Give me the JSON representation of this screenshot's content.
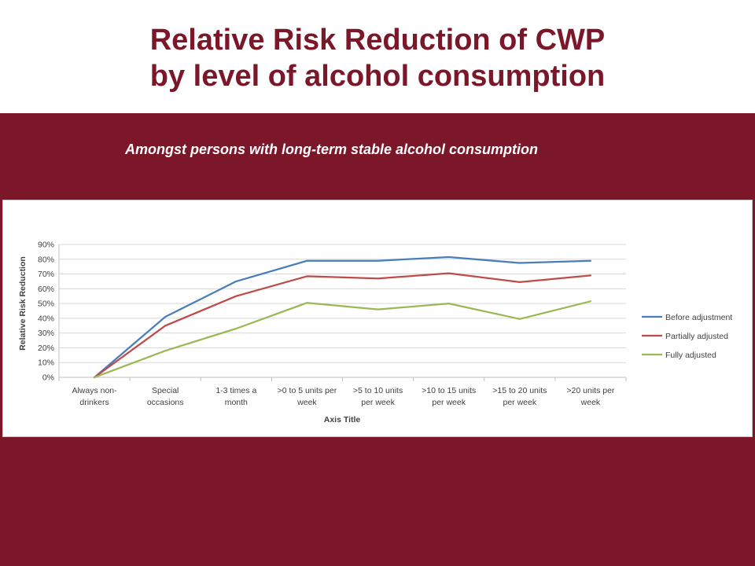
{
  "slide": {
    "title_line1": "Relative Risk Reduction of CWP",
    "title_line2": "by level of alcohol consumption",
    "subtitle": "Amongst persons with long-term stable alcohol consumption",
    "title_color": "#7b1728",
    "band_color": "#7b1728"
  },
  "chart_data": {
    "type": "line",
    "xlabel": "Axis Title",
    "ylabel": "Relative Risk Reduction",
    "ylim": [
      0,
      90
    ],
    "yticks": [
      "0%",
      "10%",
      "20%",
      "30%",
      "40%",
      "50%",
      "60%",
      "70%",
      "80%",
      "90%"
    ],
    "categories": [
      [
        "Always non-",
        "drinkers"
      ],
      [
        "Special",
        "occasions"
      ],
      [
        "1-3 times a",
        "month"
      ],
      [
        ">0 to 5 units per",
        "week"
      ],
      [
        ">5 to 10 units",
        "per week"
      ],
      [
        ">10 to 15 units",
        "per week"
      ],
      [
        ">15 to 20 units",
        "per week"
      ],
      [
        ">20 units per",
        "week"
      ]
    ],
    "grid": true,
    "legend_position": "right",
    "series": [
      {
        "name": "Before adjustment",
        "color": "#4a7ebb",
        "values": [
          0,
          41,
          65,
          79,
          79,
          81.5,
          77.5,
          79
        ]
      },
      {
        "name": "Partially adjusted",
        "color": "#be4b48",
        "values": [
          0,
          35,
          55,
          68.5,
          67,
          70.5,
          64.5,
          69
        ]
      },
      {
        "name": "Fully adjusted",
        "color": "#98b954",
        "values": [
          0,
          18,
          33,
          50.5,
          46,
          50,
          39.5,
          51.5
        ]
      }
    ]
  }
}
